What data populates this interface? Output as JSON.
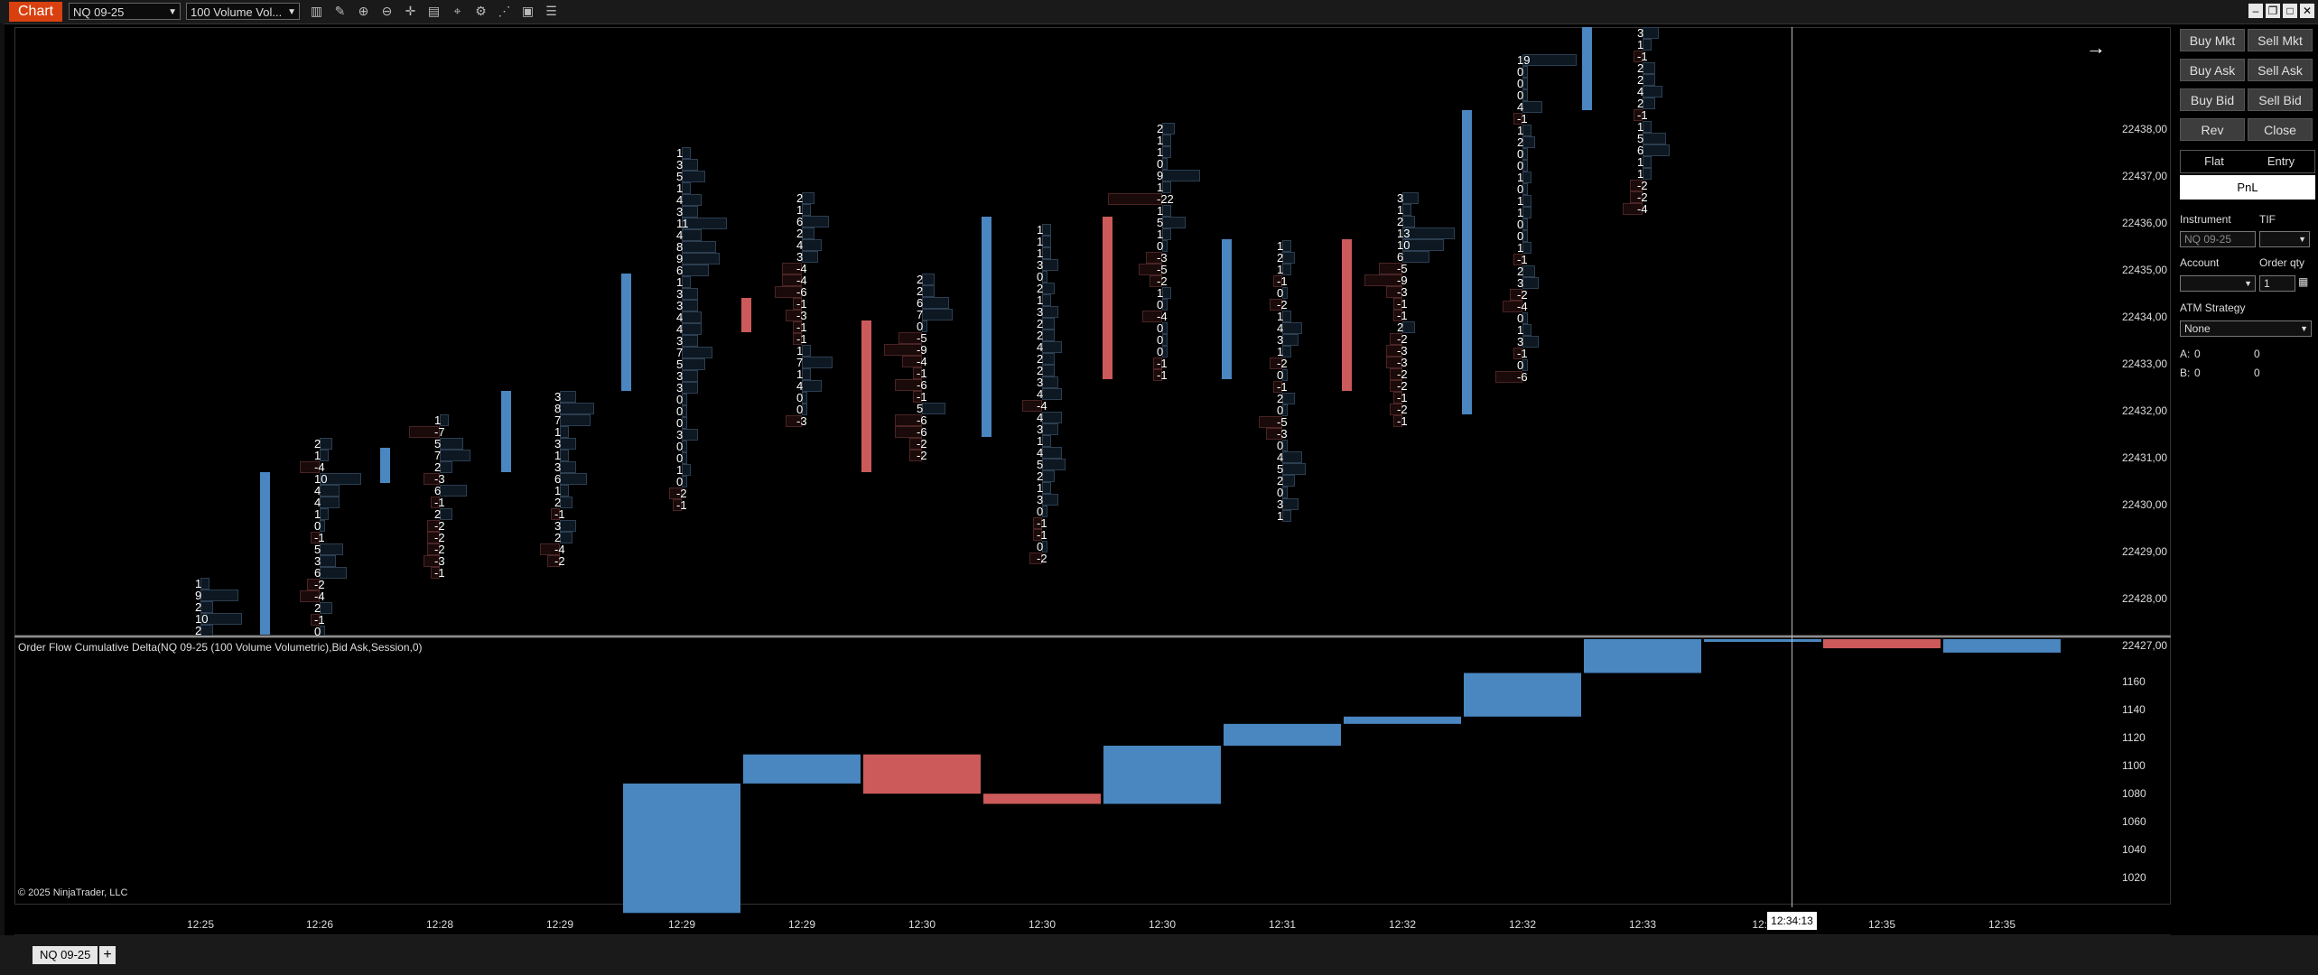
{
  "toolbar": {
    "chart_tab": "Chart",
    "instrument": "NQ 09-25",
    "bar_type": "100 Volume Vol..."
  },
  "price_axis": [
    "22438,00",
    "22437,00",
    "22436,00",
    "22435,00",
    "22434,00",
    "22433,00",
    "22432,00",
    "22431,00",
    "22430,00",
    "22429,00",
    "22428,00",
    "22427,00"
  ],
  "delta_axis": [
    "1160",
    "1140",
    "1120",
    "1100",
    "1080",
    "1060",
    "1040",
    "1020"
  ],
  "time_axis": [
    "12:25",
    "12:26",
    "12:28",
    "12:29",
    "12:29",
    "12:29",
    "12:30",
    "12:30",
    "12:30",
    "12:31",
    "12:32",
    "12:32",
    "12:33",
    "12:3",
    "12:35",
    "12:35"
  ],
  "crosshair_time": "12:34:13",
  "indicator_label": "Order Flow Cumulative Delta(NQ 09-25 (100 Volume Volumetric),Bid Ask,Session,0)",
  "copyright": "© 2025 NinjaTrader, LLC",
  "chart_data": {
    "type": "bar",
    "footprint_columns": [
      {
        "time": "12:25",
        "values": [
          "1",
          "9",
          "2",
          "10",
          "2"
        ]
      },
      {
        "time": "12:26",
        "values": [
          "2",
          "1",
          "-4",
          "10",
          "4",
          "4",
          "1",
          "0",
          "-1",
          "5",
          "3",
          "6",
          "-2",
          "-4",
          "2",
          "-1",
          "0"
        ]
      },
      {
        "time": "12:28",
        "values": [
          "1",
          "-7",
          "5",
          "7",
          "2",
          "-3",
          "6",
          "-1",
          "2",
          "-2",
          "-2",
          "-2",
          "-3",
          "-1"
        ]
      },
      {
        "time": "12:29",
        "values": [
          "3",
          "8",
          "7",
          "1",
          "3",
          "1",
          "3",
          "6",
          "1",
          "2",
          "-1",
          "3",
          "2",
          "-4",
          "-2"
        ]
      },
      {
        "time": "12:29",
        "values": [
          "1",
          "3",
          "5",
          "1",
          "4",
          "3",
          "11",
          "4",
          "8",
          "9",
          "6",
          "1",
          "3",
          "3",
          "4",
          "4",
          "3",
          "7",
          "5",
          "3",
          "3",
          "0",
          "0",
          "0",
          "3",
          "0",
          "0",
          "1",
          "0",
          "-2",
          "-1"
        ]
      },
      {
        "time": "12:29",
        "values": [
          "2",
          "1",
          "6",
          "2",
          "4",
          "3",
          "-4",
          "-4",
          "-6",
          "-1",
          "-3",
          "-1",
          "-1",
          "1",
          "7",
          "1",
          "4",
          "0",
          "0",
          "-3"
        ]
      },
      {
        "time": "12:30",
        "values": [
          "2",
          "2",
          "6",
          "7",
          "0",
          "-5",
          "-9",
          "-4",
          "-1",
          "-6",
          "-1",
          "5",
          "-6",
          "-6",
          "-2",
          "-2"
        ]
      },
      {
        "time": "12:30",
        "values": [
          "1",
          "1",
          "1",
          "3",
          "0",
          "2",
          "1",
          "3",
          "2",
          "2",
          "4",
          "2",
          "2",
          "3",
          "4",
          "-4",
          "4",
          "3",
          "1",
          "4",
          "5",
          "2",
          "1",
          "3",
          "0",
          "-1",
          "-1",
          "0",
          "-2"
        ]
      },
      {
        "time": "12:30",
        "values": [
          "2",
          "1",
          "1",
          "0",
          "9",
          "1",
          "-22",
          "1",
          "5",
          "1",
          "0",
          "-3",
          "-5",
          "-2",
          "1",
          "0",
          "-4",
          "0",
          "0",
          "0",
          "-1",
          "-1"
        ]
      },
      {
        "time": "12:31",
        "values": [
          "1",
          "2",
          "1",
          "-1",
          "0",
          "-2",
          "1",
          "4",
          "3",
          "1",
          "-2",
          "0",
          "-1",
          "2",
          "0",
          "-5",
          "-3",
          "0",
          "4",
          "5",
          "2",
          "0",
          "3",
          "1"
        ]
      },
      {
        "time": "12:32",
        "values": [
          "3",
          "1",
          "2",
          "13",
          "10",
          "6",
          "-5",
          "-9",
          "-3",
          "-1",
          "-1",
          "2",
          "-2",
          "-3",
          "-3",
          "-2",
          "-2",
          "-1",
          "-2",
          "-1"
        ]
      },
      {
        "time": "12:32",
        "values": [
          "19",
          "0",
          "0",
          "0",
          "4",
          "-1",
          "1",
          "2",
          "0",
          "0",
          "1",
          "0",
          "1",
          "1",
          "0",
          "0",
          "1",
          "-1",
          "2",
          "3",
          "-2",
          "-4",
          "0",
          "1",
          "3",
          "-1",
          "0",
          "-6"
        ]
      },
      {
        "time": "12:33",
        "values": [
          "3",
          "1",
          "-1",
          "2",
          "2",
          "4",
          "2",
          "-1",
          "1",
          "5",
          "6",
          "1",
          "1",
          "-2",
          "-2",
          "-4"
        ]
      }
    ],
    "delta_candles": [
      {
        "open": 1003,
        "close": 1092,
        "color": "blue"
      },
      {
        "open": 1092,
        "close": 1112,
        "color": "blue"
      },
      {
        "open": 1112,
        "close": 1085,
        "color": "red"
      },
      {
        "open": 1085,
        "close": 1078,
        "color": "red"
      },
      {
        "open": 1078,
        "close": 1118,
        "color": "blue"
      },
      {
        "open": 1118,
        "close": 1133,
        "color": "blue"
      },
      {
        "open": 1133,
        "close": 1138,
        "color": "blue"
      },
      {
        "open": 1138,
        "close": 1168,
        "color": "blue"
      },
      {
        "open": 1168,
        "close": 1195,
        "color": "blue"
      },
      {
        "open": 1196,
        "close": 1196,
        "color": "blue"
      },
      {
        "open": 1185,
        "close": 1200,
        "color": "red"
      },
      {
        "open": 1182,
        "close": 1200,
        "color": "blue"
      }
    ],
    "ylim": [
      1010,
      1190
    ]
  },
  "order_panel": {
    "buy_mkt": "Buy Mkt",
    "sell_mkt": "Sell Mkt",
    "buy_ask": "Buy Ask",
    "sell_ask": "Sell Ask",
    "buy_bid": "Buy Bid",
    "sell_bid": "Sell Bid",
    "rev": "Rev",
    "close": "Close",
    "flat": "Flat",
    "entry": "Entry",
    "pnl": "PnL",
    "instrument_label": "Instrument",
    "tif_label": "TIF",
    "instrument_value": "NQ 09-25",
    "account_label": "Account",
    "order_qty_label": "Order qty",
    "order_qty_value": "1",
    "atm_label": "ATM Strategy",
    "atm_value": "None",
    "a_label": "A:",
    "a_val1": "0",
    "a_val2": "0",
    "b_label": "B:",
    "b_val1": "0",
    "b_val2": "0"
  },
  "bottom": {
    "tab": "NQ 09-25",
    "plus": "+"
  }
}
